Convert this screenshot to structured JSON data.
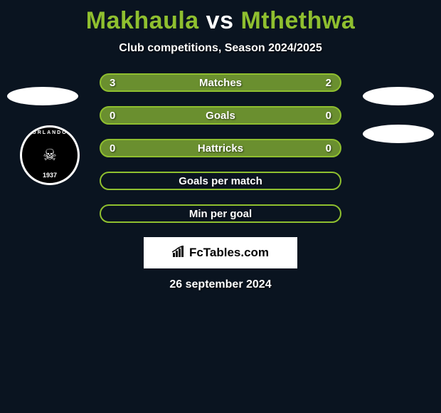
{
  "title": {
    "left": "Makhaula",
    "vs": "vs",
    "right": "Mthethwa",
    "color_left": "#8fbf2f",
    "color_vs": "#ffffff",
    "color_right": "#8fbf2f"
  },
  "subtitle": "Club competitions, Season 2024/2025",
  "date": "26 september 2024",
  "brand": "FcTables.com",
  "background_color": "#0a1420",
  "stat_rows": [
    {
      "label": "Matches",
      "left": "3",
      "right": "2",
      "has_values": true,
      "fill": "#6a8f2f",
      "border": "#8fbf2f",
      "left_ratio": 0.6
    },
    {
      "label": "Goals",
      "left": "0",
      "right": "0",
      "has_values": true,
      "fill": "#6a8f2f",
      "border": "#8fbf2f",
      "left_ratio": 0.5
    },
    {
      "label": "Hattricks",
      "left": "0",
      "right": "0",
      "has_values": true,
      "fill": "#6a8f2f",
      "border": "#8fbf2f",
      "left_ratio": 0.5
    },
    {
      "label": "Goals per match",
      "left": "",
      "right": "",
      "has_values": false,
      "fill": "transparent",
      "border": "#8fbf2f",
      "left_ratio": 0
    },
    {
      "label": "Min per goal",
      "left": "",
      "right": "",
      "has_values": false,
      "fill": "transparent",
      "border": "#8fbf2f",
      "left_ratio": 0
    }
  ],
  "badge": {
    "top_text": "ORLANDO",
    "year": "1937"
  }
}
